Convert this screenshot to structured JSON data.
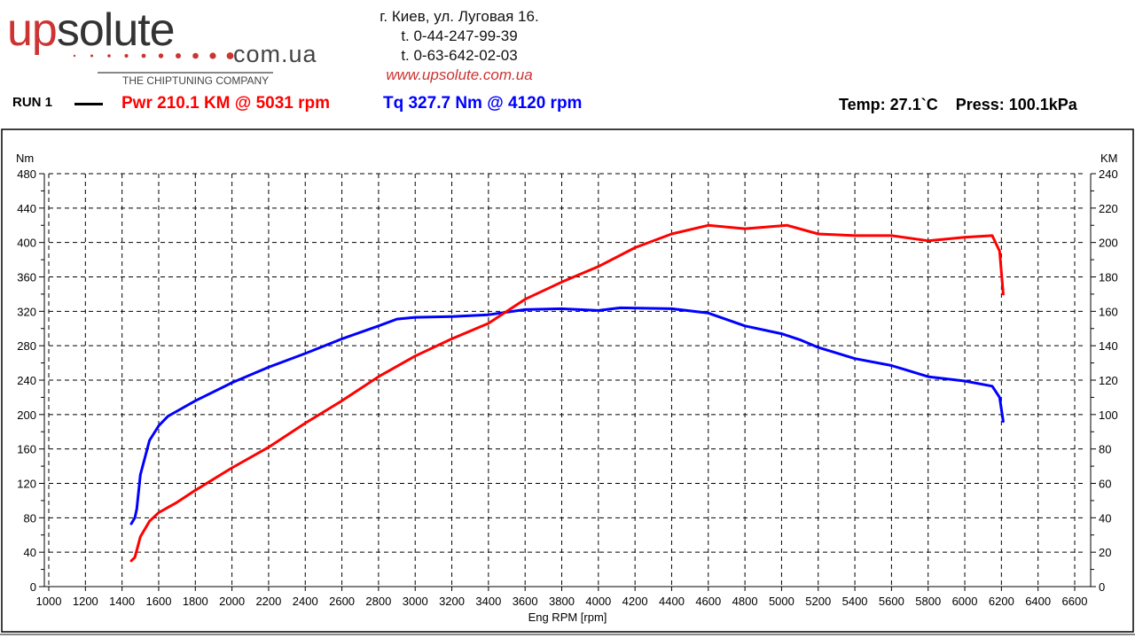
{
  "header": {
    "logo": {
      "part1": "up",
      "part2": "solute",
      "domain": "com.ua",
      "tagline": "THE CHIPTUNING COMPANY"
    },
    "address": "г. Киев, ул. Луговая 16.",
    "phone1": "t. 0-44-247-99-39",
    "phone2": "t. 0-63-642-02-03",
    "website": "www.upsolute.com.ua",
    "run_label": "RUN 1",
    "power_summary": "Pwr  210.1 KM @ 5031 rpm",
    "torque_summary": "Tq 327.7 Nm @ 4120 rpm",
    "conditions": "Temp: 27.1`C    Press: 100.1kPa"
  },
  "colors": {
    "power": "#ff0000",
    "torque": "#0000ff",
    "logo_red": "#cc3333"
  },
  "chart_data": {
    "type": "line",
    "xlabel": "Eng RPM [rpm]",
    "ylabel_left": "Nm",
    "ylabel_right": "KM",
    "xlim": [
      1000,
      6600
    ],
    "ylim_left": [
      0,
      480
    ],
    "ylim_right": [
      0,
      240
    ],
    "x_ticks": [
      1000,
      1200,
      1400,
      1600,
      1800,
      2000,
      2200,
      2400,
      2600,
      2800,
      3000,
      3200,
      3400,
      3600,
      3800,
      4000,
      4200,
      4400,
      4600,
      4800,
      5000,
      5200,
      5400,
      5600,
      5800,
      6000,
      6200,
      6400,
      6600
    ],
    "y_ticks_left": [
      0,
      40,
      80,
      120,
      160,
      200,
      240,
      280,
      320,
      360,
      400,
      440,
      480
    ],
    "y_ticks_right": [
      0,
      20,
      40,
      60,
      80,
      100,
      120,
      140,
      160,
      180,
      200,
      220,
      240
    ],
    "grid": true,
    "series": [
      {
        "name": "Tq",
        "axis": "left",
        "color": "#0000ff",
        "x": [
          1450,
          1470,
          1480,
          1500,
          1550,
          1600,
          1650,
          1700,
          1800,
          2000,
          2200,
          2400,
          2600,
          2800,
          2900,
          3000,
          3200,
          3400,
          3600,
          3800,
          4000,
          4120,
          4400,
          4600,
          4800,
          5000,
          5100,
          5200,
          5400,
          5600,
          5800,
          6000,
          6150,
          6190,
          6210
        ],
        "y": [
          73,
          80,
          90,
          130,
          170,
          187,
          198,
          204,
          216,
          237,
          255,
          271,
          288,
          303,
          311,
          313,
          314,
          316,
          322,
          323,
          321,
          324,
          323,
          318,
          303,
          294,
          287,
          278,
          265,
          257,
          244,
          239,
          233,
          220,
          192
        ]
      },
      {
        "name": "Pwr",
        "axis": "right",
        "color": "#ff0000",
        "x": [
          1450,
          1470,
          1480,
          1500,
          1550,
          1600,
          1650,
          1700,
          1800,
          2000,
          2200,
          2400,
          2600,
          2800,
          3000,
          3200,
          3400,
          3600,
          3800,
          4000,
          4200,
          4400,
          4600,
          4800,
          5031,
          5200,
          5400,
          5600,
          5800,
          6000,
          6150,
          6190,
          6210
        ],
        "y": [
          15,
          17,
          21,
          29,
          38,
          43,
          46,
          49,
          56,
          69,
          81,
          95,
          108,
          122,
          134,
          144,
          153,
          167,
          177,
          186,
          197,
          205,
          210,
          208,
          210,
          205,
          204,
          204,
          201,
          203,
          204,
          195,
          170
        ]
      }
    ]
  }
}
